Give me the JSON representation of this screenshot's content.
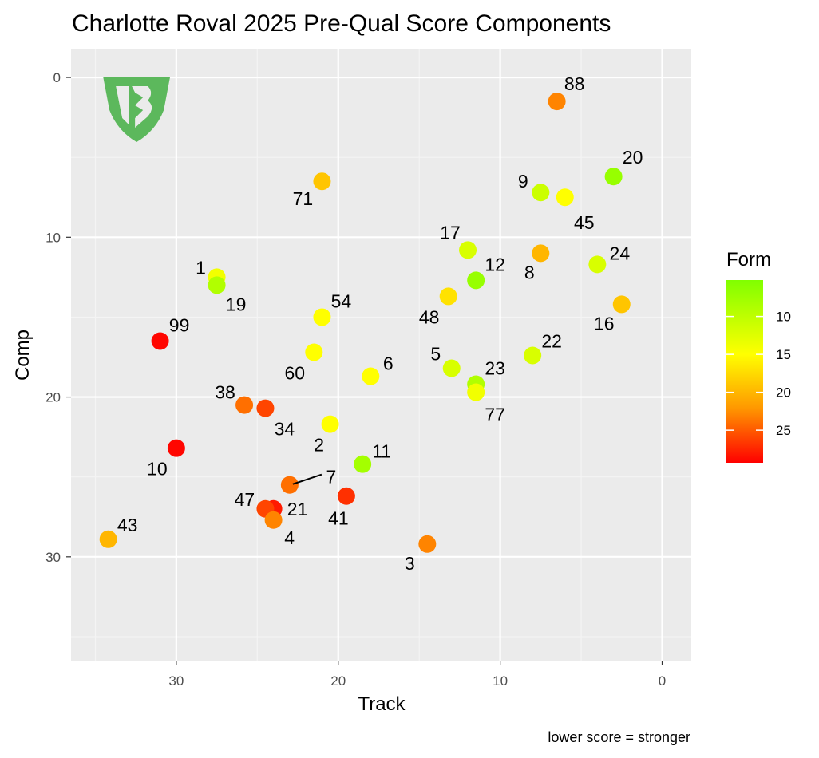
{
  "chart_data": {
    "type": "scatter",
    "title": "Charlotte Roval 2025 Pre-Qual Score Components",
    "xlabel": "Track",
    "ylabel": "Comp",
    "caption": "lower score = stronger",
    "xlim": [
      36.5,
      -1.8
    ],
    "ylim": [
      -1.8,
      36.5
    ],
    "x_reversed": true,
    "y_reversed": true,
    "x_ticks": [
      30,
      20,
      10,
      0
    ],
    "y_ticks": [
      0,
      10,
      20,
      30
    ],
    "grid": true,
    "legend": {
      "title": "Form",
      "placement": "right",
      "ticks": [
        10,
        15,
        20,
        25
      ],
      "min": 5.2,
      "max": 29.3,
      "colors": [
        "#80FF00",
        "#FFFF00",
        "#FF9900",
        "#FF0000"
      ]
    },
    "logo_text": "BC",
    "points": [
      {
        "label": "88",
        "track": 6.5,
        "comp": 1.5,
        "form": 23
      },
      {
        "label": "20",
        "track": 3.0,
        "comp": 6.2,
        "form": 7
      },
      {
        "label": "9",
        "track": 7.5,
        "comp": 7.2,
        "form": 11
      },
      {
        "label": "45",
        "track": 6.0,
        "comp": 7.5,
        "form": 15
      },
      {
        "label": "71",
        "track": 21.0,
        "comp": 6.5,
        "form": 19
      },
      {
        "label": "17",
        "track": 12.0,
        "comp": 10.8,
        "form": 12
      },
      {
        "label": "8",
        "track": 7.5,
        "comp": 11.0,
        "form": 20
      },
      {
        "label": "24",
        "track": 4.0,
        "comp": 11.7,
        "form": 12
      },
      {
        "label": "12",
        "track": 11.5,
        "comp": 12.7,
        "form": 7
      },
      {
        "label": "1",
        "track": 27.5,
        "comp": 12.5,
        "form": 14
      },
      {
        "label": "19",
        "track": 27.5,
        "comp": 13.0,
        "form": 9
      },
      {
        "label": "48",
        "track": 13.2,
        "comp": 13.7,
        "form": 17
      },
      {
        "label": "16",
        "track": 2.5,
        "comp": 14.2,
        "form": 19
      },
      {
        "label": "54",
        "track": 21.0,
        "comp": 15.0,
        "form": 15
      },
      {
        "label": "99",
        "track": 31.0,
        "comp": 16.5,
        "form": 29
      },
      {
        "label": "60",
        "track": 21.5,
        "comp": 17.2,
        "form": 15
      },
      {
        "label": "22",
        "track": 8.0,
        "comp": 17.4,
        "form": 12
      },
      {
        "label": "5",
        "track": 13.0,
        "comp": 18.2,
        "form": 12
      },
      {
        "label": "6",
        "track": 18.0,
        "comp": 18.7,
        "form": 15
      },
      {
        "label": "23",
        "track": 11.5,
        "comp": 19.2,
        "form": 9
      },
      {
        "label": "77",
        "track": 11.5,
        "comp": 19.7,
        "form": 14
      },
      {
        "label": "38",
        "track": 25.8,
        "comp": 20.5,
        "form": 24
      },
      {
        "label": "34",
        "track": 24.5,
        "comp": 20.7,
        "form": 26
      },
      {
        "label": "2",
        "track": 20.5,
        "comp": 21.7,
        "form": 15
      },
      {
        "label": "10",
        "track": 30.0,
        "comp": 23.2,
        "form": 29
      },
      {
        "label": "11",
        "track": 18.5,
        "comp": 24.2,
        "form": 8
      },
      {
        "label": "7",
        "track": 23.0,
        "comp": 25.5,
        "form": 24
      },
      {
        "label": "41",
        "track": 19.5,
        "comp": 26.2,
        "form": 27
      },
      {
        "label": "21",
        "track": 24.0,
        "comp": 27.0,
        "form": 28
      },
      {
        "label": "47",
        "track": 24.5,
        "comp": 27.0,
        "form": 26
      },
      {
        "label": "4",
        "track": 24.0,
        "comp": 27.7,
        "form": 23
      },
      {
        "label": "43",
        "track": 34.2,
        "comp": 28.9,
        "form": 20
      },
      {
        "label": "3",
        "track": 14.5,
        "comp": 29.2,
        "form": 23
      }
    ]
  }
}
